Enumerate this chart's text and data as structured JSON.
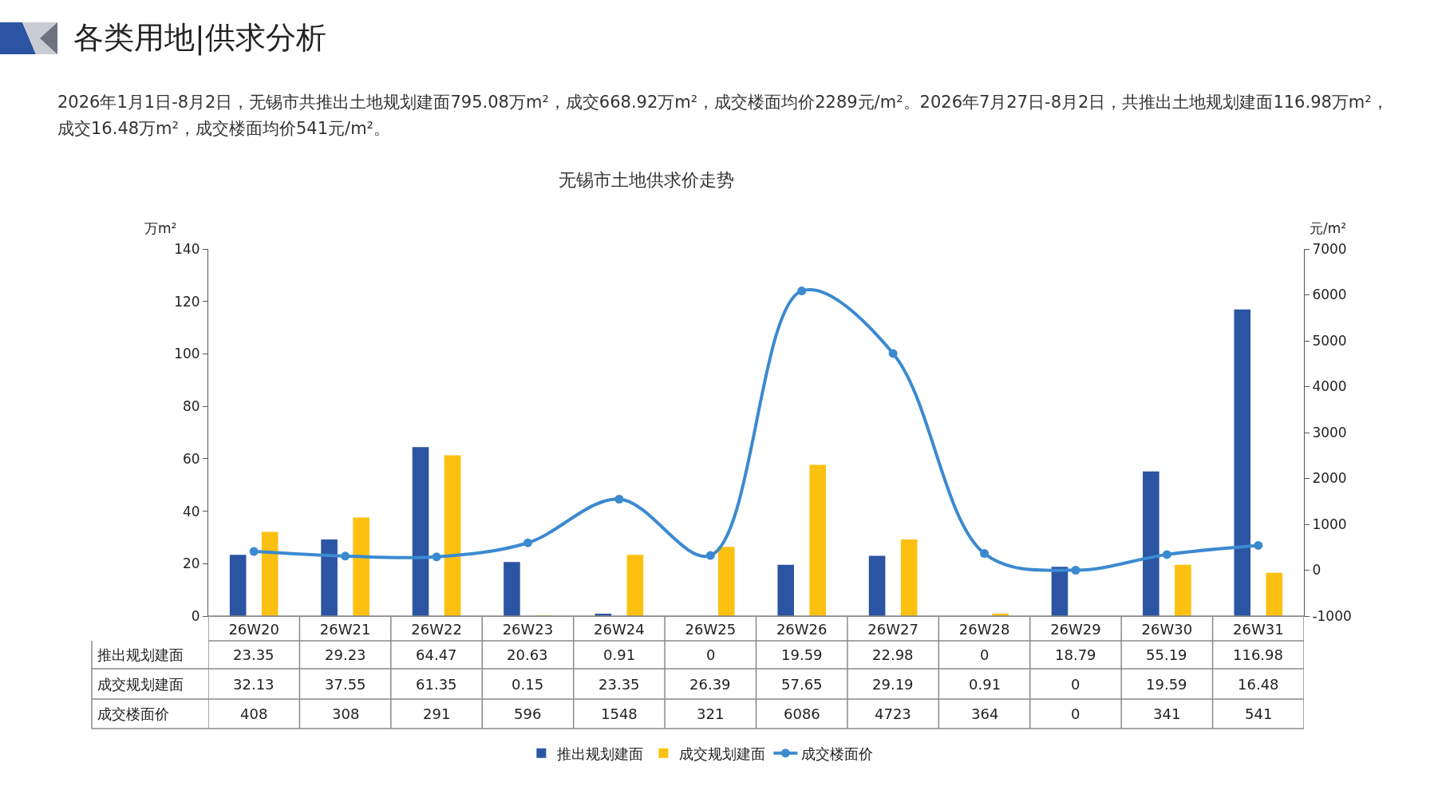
{
  "chart_data": {
    "type": "bar",
    "title": "各类用地|供求分析",
    "subtitle": "2026年1月1日-8月2日，无锡市共推出土地规划建面795.08万m²，成交668.92万m²，成交楼面均价2289元/m²。2026年7月27日-8月2日，共推出土地规划建面116.98万m²，成交16.48万m²，成交楼面均价541元/m²。",
    "annotations": [
      "无锡市土地供求价走势"
    ],
    "ylabel": "万m²",
    "y2label": "元/m²",
    "categories": [
      "26W20",
      "26W21",
      "26W22",
      "26W23",
      "26W24",
      "26W25",
      "26W26",
      "26W27",
      "26W28",
      "26W29",
      "26W30",
      "26W31"
    ],
    "series": [
      {
        "name": "推出规划建面",
        "color": "#2b55a3",
        "values": [
          23.35,
          29.23,
          64.47,
          20.63,
          0.91,
          0,
          19.59,
          22.98,
          0,
          18.79,
          55.19,
          116.98
        ]
      },
      {
        "name": "成交规划建面",
        "color": "#fcc010",
        "values": [
          32.13,
          37.55,
          61.35,
          0.15,
          23.35,
          26.39,
          57.65,
          29.19,
          0.91,
          0,
          19.59,
          16.48
        ]
      },
      {
        "name": "成交楼面价",
        "type": "line",
        "axis": "y2",
        "color": "#3b8ad0",
        "values": [
          408,
          308,
          291,
          596,
          1548,
          321,
          6086,
          4723,
          364,
          0,
          341,
          541
        ]
      }
    ],
    "ylim": [
      0,
      140
    ],
    "yticks": [
      0,
      20,
      40,
      60,
      80,
      100,
      120,
      140
    ],
    "y2lim": [
      -1000,
      7000
    ],
    "y2ticks": [
      -1000,
      0,
      1000,
      2000,
      3000,
      4000,
      5000,
      6000,
      7000
    ],
    "data_labels": true,
    "grid": false,
    "legend": "bottom",
    "marker": "circle",
    "line_style": "solid"
  }
}
